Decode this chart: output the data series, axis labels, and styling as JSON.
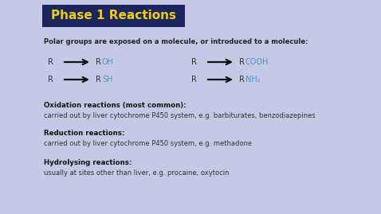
{
  "bg_color": "#c5c9e5",
  "title_text": "Phase 1 Reactions",
  "title_bg": "#1a2560",
  "title_color": "#f0d000",
  "subtitle": "Polar groups are exposed on a molecule, or introduced to a molecule:",
  "subtitle_color": "#222222",
  "r_color": "#333333",
  "product_color": "#4499cc",
  "arrow_color": "#111111",
  "reactions_row1": [
    {
      "r_label": "R",
      "product": "OH",
      "col": "left"
    },
    {
      "r_label": "R",
      "product": "RCOOH",
      "col": "right"
    }
  ],
  "reactions_row2": [
    {
      "r_label": "R",
      "product": "SH",
      "col": "left"
    },
    {
      "r_label": "R",
      "product": "RNH₂",
      "col": "right"
    }
  ],
  "sections": [
    {
      "heading": "Oxidation reactions (most common):",
      "body": "carried out by liver cytochrome P450 system, e.g. barbiturates, benzodiazepines"
    },
    {
      "heading": "Reduction reactions:",
      "body": "carried out by liver cytochrome P450 system, e.g. methadone"
    },
    {
      "heading": "Hydrolysing reactions:",
      "body": "usually at sites other than liver, e.g. procaine, oxytocin"
    }
  ],
  "heading_color": "#111111",
  "body_color": "#333333",
  "fig_width": 4.78,
  "fig_height": 2.69,
  "dpi": 100
}
